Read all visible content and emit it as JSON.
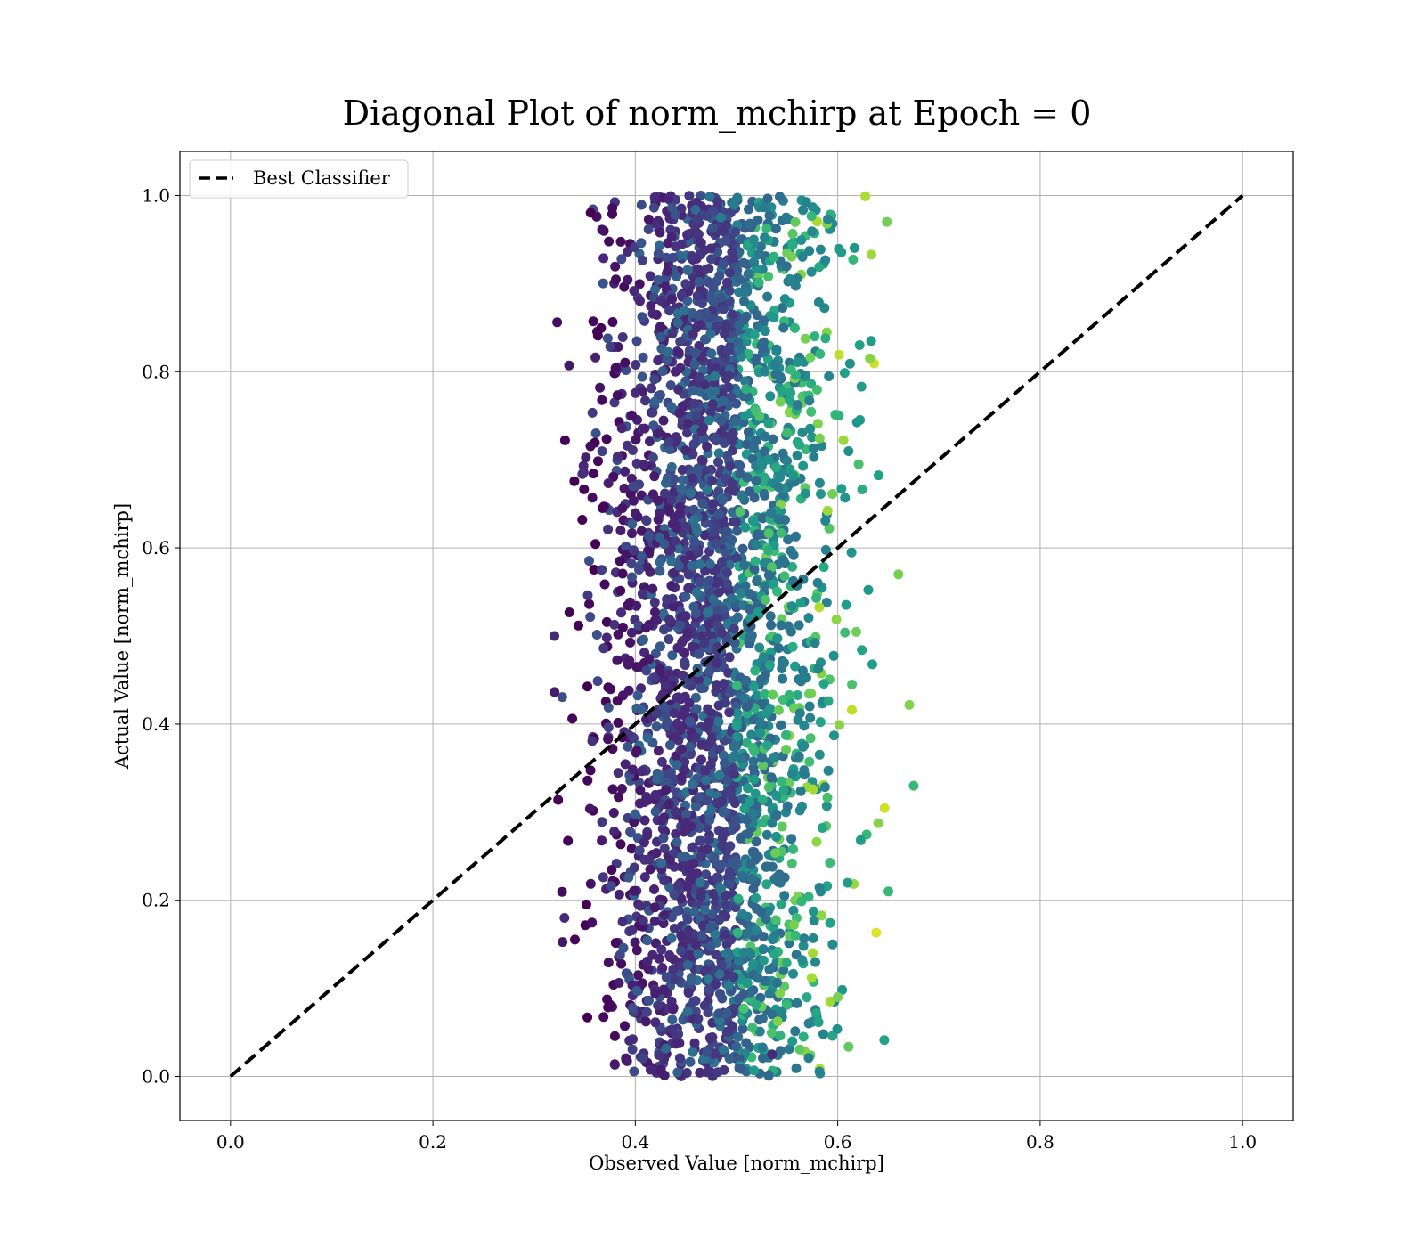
{
  "chart_data": {
    "type": "scatter",
    "title": "Diagonal Plot of norm_mchirp at Epoch = 0",
    "xlabel": "Observed Value [norm_mchirp]",
    "ylabel": "Actual Value [norm_mchirp]",
    "xlim": [
      -0.05,
      1.05
    ],
    "ylim": [
      -0.05,
      1.05
    ],
    "xticks": [
      "0.0",
      "0.2",
      "0.4",
      "0.6",
      "0.8",
      "1.0"
    ],
    "yticks": [
      "0.0",
      "0.2",
      "0.4",
      "0.6",
      "0.8",
      "1.0"
    ],
    "grid": true,
    "colormap": "viridis",
    "reference_line": {
      "name": "Best Classifier",
      "x": [
        0.0,
        1.0
      ],
      "y": [
        0.0,
        1.0
      ],
      "style": "dashed",
      "color": "#000000"
    },
    "legend": {
      "placement": "top-left",
      "entries": [
        "Best Classifier"
      ]
    },
    "scatter_distribution": {
      "x_center": 0.48,
      "x_spread": 0.055,
      "x_min": 0.32,
      "x_max": 0.68,
      "y_min": 0.0,
      "y_max": 1.0,
      "approx_point_count": 3200
    },
    "highlight_points": [
      {
        "x": 0.32,
        "y": 0.5
      },
      {
        "x": 0.675,
        "y": 0.33
      },
      {
        "x": 0.66,
        "y": 0.57
      },
      {
        "x": 0.633,
        "y": 0.835
      },
      {
        "x": 0.33,
        "y": 0.18
      },
      {
        "x": 0.6,
        "y": 0.09
      },
      {
        "x": 0.535,
        "y": 0.025
      },
      {
        "x": 0.65,
        "y": 0.21
      }
    ]
  }
}
